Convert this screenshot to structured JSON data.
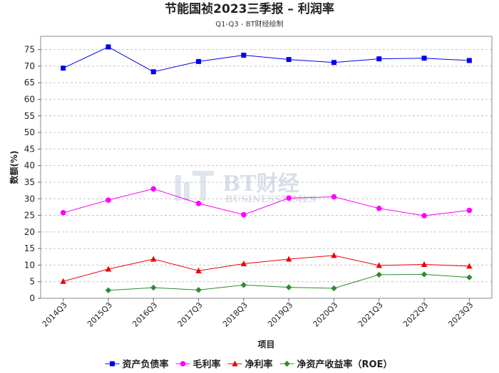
{
  "chart_data": {
    "type": "line",
    "title": "节能国祯2023三季报 – 利润率",
    "subtitle": "Q1-Q3 - BT财经绘制",
    "xlabel": "项目",
    "ylabel": "数额(%)",
    "ylim": [
      0,
      79
    ],
    "yticks": [
      0,
      5,
      10,
      15,
      20,
      25,
      30,
      35,
      40,
      45,
      50,
      55,
      60,
      65,
      70,
      75
    ],
    "grid": true,
    "legend_position": "bottom",
    "categories": [
      "2014Q3",
      "2015Q3",
      "2016Q3",
      "2017Q3",
      "2018Q3",
      "2019Q3",
      "2020Q3",
      "2021Q3",
      "2022Q3",
      "2023Q3"
    ],
    "series": [
      {
        "name": "资产负债率",
        "color": "#0000ee",
        "marker": "square",
        "values": [
          69.4,
          75.8,
          68.3,
          71.4,
          73.3,
          72.0,
          71.1,
          72.2,
          72.4,
          71.7
        ]
      },
      {
        "name": "毛利率",
        "color": "#ff00ff",
        "marker": "circle",
        "values": [
          25.8,
          29.6,
          33.0,
          28.6,
          25.2,
          30.2,
          30.6,
          27.1,
          24.9,
          26.5
        ]
      },
      {
        "name": "净利率",
        "color": "#ee0000",
        "marker": "triangle",
        "values": [
          5.1,
          8.8,
          11.8,
          8.3,
          10.4,
          11.8,
          12.9,
          9.9,
          10.2,
          9.7
        ]
      },
      {
        "name": "净资产收益率（ROE）",
        "color": "#2e8b2e",
        "marker": "diamond",
        "values": [
          null,
          2.4,
          3.2,
          2.5,
          4.0,
          3.3,
          3.0,
          7.1,
          7.2,
          6.3
        ]
      }
    ]
  },
  "watermark": {
    "brand": "BT财经",
    "sub": "BUSINESSTIMES"
  }
}
